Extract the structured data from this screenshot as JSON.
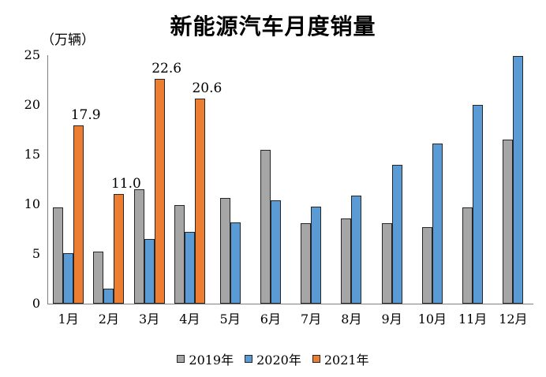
{
  "title": "新能源汽车月度销量",
  "unit_label": "（万辆）",
  "chart_data": {
    "type": "bar",
    "title": "新能源汽车月度销量",
    "ylabel": "（万辆）",
    "xlabel": "",
    "ylim": [
      0,
      25
    ],
    "yticks": [
      0,
      5,
      10,
      15,
      20,
      25
    ],
    "grid": false,
    "legend_position": "bottom",
    "categories": [
      "1月",
      "2月",
      "3月",
      "4月",
      "5月",
      "6月",
      "7月",
      "8月",
      "9月",
      "10月",
      "11月",
      "12月"
    ],
    "series": [
      {
        "name": "2019年",
        "color": "#a6a6a6",
        "values": [
          9.7,
          5.2,
          11.5,
          9.9,
          10.6,
          15.5,
          8.1,
          8.6,
          8.1,
          7.7,
          9.7,
          16.5
        ]
      },
      {
        "name": "2020年",
        "color": "#5b9bd5",
        "values": [
          5.1,
          1.5,
          6.5,
          7.2,
          8.2,
          10.4,
          9.8,
          10.9,
          14.0,
          16.1,
          20.0,
          24.9
        ]
      },
      {
        "name": "2021年",
        "color": "#ed7d31",
        "values": [
          17.9,
          11.0,
          22.6,
          20.6,
          null,
          null,
          null,
          null,
          null,
          null,
          null,
          null
        ]
      }
    ],
    "annotations": [
      {
        "month_index": 0,
        "text": "17.9"
      },
      {
        "month_index": 1,
        "text": "11.0"
      },
      {
        "month_index": 2,
        "text": "22.6"
      },
      {
        "month_index": 3,
        "text": "20.6"
      }
    ]
  },
  "legend": {
    "items": [
      {
        "label": "2019年",
        "color": "#a6a6a6"
      },
      {
        "label": "2020年",
        "color": "#5b9bd5"
      },
      {
        "label": "2021年",
        "color": "#ed7d31"
      }
    ]
  },
  "colors": {
    "bar_border": "#262626",
    "axis_line": "#7f7f7f",
    "text": "#000000"
  }
}
